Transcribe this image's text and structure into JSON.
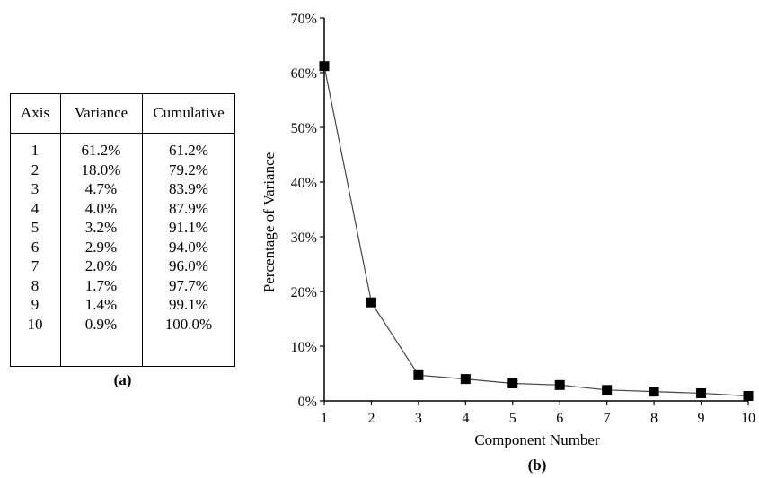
{
  "table": {
    "headers": [
      "Axis",
      "Variance",
      "Cumulative"
    ],
    "rows": [
      [
        "1",
        "61.2%",
        "61.2%"
      ],
      [
        "2",
        "18.0%",
        "79.2%"
      ],
      [
        "3",
        "4.7%",
        "83.9%"
      ],
      [
        "4",
        "4.0%",
        "87.9%"
      ],
      [
        "5",
        "3.2%",
        "91.1%"
      ],
      [
        "6",
        "2.9%",
        "94.0%"
      ],
      [
        "7",
        "2.0%",
        "96.0%"
      ],
      [
        "8",
        "1.7%",
        "97.7%"
      ],
      [
        "9",
        "1.4%",
        "99.1%"
      ],
      [
        "10",
        "0.9%",
        "100.0%"
      ]
    ],
    "caption": "(a)"
  },
  "chart_data": {
    "type": "line",
    "x": [
      1,
      2,
      3,
      4,
      5,
      6,
      7,
      8,
      9,
      10
    ],
    "values": [
      61.2,
      18.0,
      4.7,
      4.0,
      3.2,
      2.9,
      2.0,
      1.7,
      1.4,
      0.9
    ],
    "xlabel": "Component Number",
    "ylabel": "Percentage of Variance",
    "xlim": [
      1,
      10
    ],
    "ylim": [
      0,
      70
    ],
    "yticks": [
      "0%",
      "10%",
      "20%",
      "30%",
      "40%",
      "50%",
      "60%",
      "70%"
    ],
    "xticks": [
      "1",
      "2",
      "3",
      "4",
      "5",
      "6",
      "7",
      "8",
      "9",
      "10"
    ],
    "marker": "square",
    "line_color": "#444444",
    "marker_color": "#000000",
    "grid": false,
    "caption": "(b)"
  }
}
